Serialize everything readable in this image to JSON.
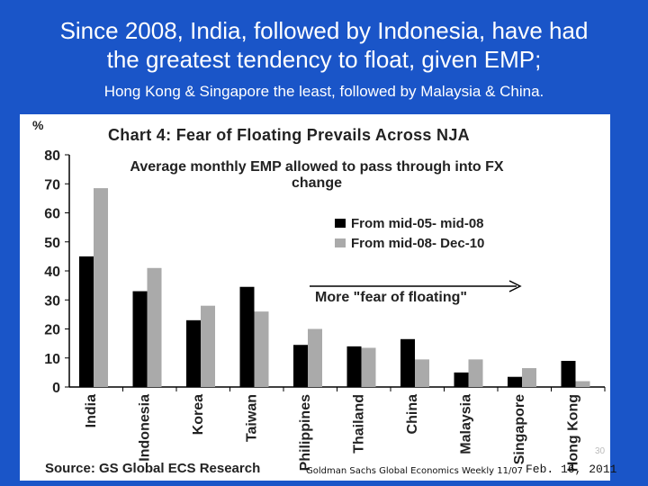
{
  "slide": {
    "title_line1": "Since 2008, India, followed by Indonesia, have had",
    "title_line2": "the greatest tendency to float, given EMP;",
    "subtitle": "Hong Kong & Singapore the least, followed by Malaysia & China.",
    "footer_citation": "Goldman Sachs Global Economics Weekly 11/07",
    "footer_date": "Feb. 16, 2011",
    "page_number": "30"
  },
  "colors": {
    "background": "#1a55c8",
    "series1": "#000000",
    "series2": "#aaaaaa"
  },
  "chart_data": {
    "type": "bar",
    "title": "Chart 4: Fear of Floating Prevails Across NJA",
    "subtitle": "Average monthly EMP allowed to pass through into FX change",
    "y_unit": "%",
    "ylim": [
      0,
      80
    ],
    "yticks": [
      0,
      10,
      20,
      30,
      40,
      50,
      60,
      70,
      80
    ],
    "categories": [
      "India",
      "Indonesia",
      "Korea",
      "Taiwan",
      "Philippines",
      "Thailand",
      "China",
      "Malaysia",
      "Singapore",
      "Hong Kong"
    ],
    "series": [
      {
        "name": "From mid-05- mid-08",
        "values": [
          45,
          33,
          23,
          34.5,
          14.5,
          14,
          16.5,
          5,
          3.5,
          9
        ]
      },
      {
        "name": "From mid-08- Dec-10",
        "values": [
          68.5,
          41,
          28,
          26,
          20,
          13.5,
          9.5,
          9.5,
          6.5,
          2
        ]
      }
    ],
    "annotation": "More \"fear of floating\"",
    "source": "Source: GS Global ECS Research",
    "legend_position": "right",
    "grid": false
  }
}
